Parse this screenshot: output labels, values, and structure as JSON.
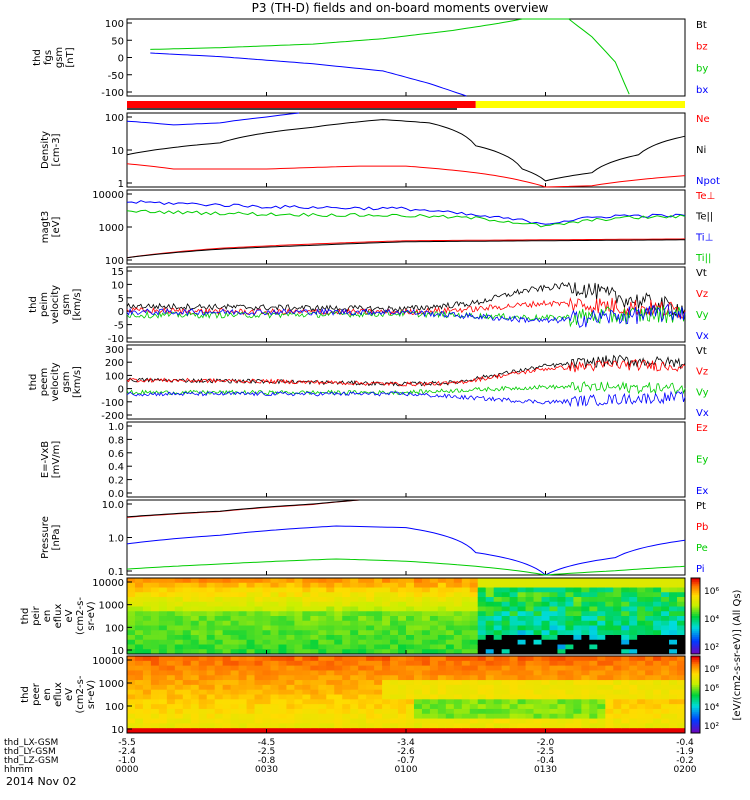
{
  "title": "P3 (TH-D) fields and on-board moments overview",
  "date_label": "2014 Nov 02",
  "colorbar": {
    "label": "[eV/(cm2-s-sr-eV)] (All Qs)",
    "ticks_upper": [
      "10⁶",
      "10⁴",
      "10²"
    ],
    "ticks_lower": [
      "10⁸",
      "10⁶",
      "10⁴",
      "10²"
    ]
  },
  "xaxis": {
    "rows": [
      {
        "label": "thd_LX-GSM",
        "values": [
          "-5.5",
          "-4.5",
          "-3.4",
          "-2.0",
          "-0.4"
        ]
      },
      {
        "label": "thd_LY-GSM",
        "values": [
          "-2.4",
          "-2.5",
          "-2.6",
          "-2.5",
          "-1.9"
        ]
      },
      {
        "label": "thd_LZ-GSM",
        "values": [
          "-1.0",
          "-0.8",
          "-0.7",
          "-0.4",
          "-0.2"
        ]
      },
      {
        "label": "hhmm",
        "values": [
          "0000",
          "0030",
          "0100",
          "0130",
          "0200"
        ]
      }
    ]
  },
  "panels": [
    {
      "key": "fgs",
      "ylabel": [
        "thd",
        "fgs",
        "gsm",
        "[nT]"
      ],
      "ticks": [
        "100",
        "50",
        "0",
        "-50",
        "-100"
      ],
      "legend": [
        {
          "t": "Bt",
          "c": "#000000"
        },
        {
          "t": "bz",
          "c": "#ff0000"
        },
        {
          "t": "by",
          "c": "#00cc00"
        },
        {
          "t": "bx",
          "c": "#0000ff"
        }
      ]
    },
    {
      "key": "density",
      "ylabel": [
        "Density",
        "[cm-3]"
      ],
      "ticks": [
        "100",
        "10",
        "1"
      ],
      "legend": [
        {
          "t": "Ne",
          "c": "#ff0000"
        },
        {
          "t": "Ni",
          "c": "#000000"
        },
        {
          "t": "Npot",
          "c": "#0000ff"
        }
      ]
    },
    {
      "key": "temp",
      "ylabel": [
        "magt3",
        "[eV]"
      ],
      "ticks": [
        "10000",
        "1000",
        "100"
      ],
      "legend": [
        {
          "t": "Te⊥",
          "c": "#ff0000"
        },
        {
          "t": "Te||",
          "c": "#000000"
        },
        {
          "t": "Ti⊥",
          "c": "#0000ff"
        },
        {
          "t": "Ti||",
          "c": "#00cc00"
        }
      ]
    },
    {
      "key": "peim_v",
      "ylabel": [
        "thd",
        "peim",
        "velocity",
        "gsm",
        "[km/s]"
      ],
      "ticks": [
        "15",
        "10",
        "5",
        "0",
        "-5",
        "-10"
      ],
      "legend": [
        {
          "t": "Vt",
          "c": "#000000"
        },
        {
          "t": "Vz",
          "c": "#ff0000"
        },
        {
          "t": "Vy",
          "c": "#00cc00"
        },
        {
          "t": "Vx",
          "c": "#0000ff"
        }
      ]
    },
    {
      "key": "peem_v",
      "ylabel": [
        "thd",
        "peem",
        "velocity",
        "gsm",
        "[km/s]"
      ],
      "ticks": [
        "300",
        "200",
        "100",
        "0",
        "-100",
        "-200"
      ],
      "legend": [
        {
          "t": "Vt",
          "c": "#000000"
        },
        {
          "t": "Vz",
          "c": "#ff0000"
        },
        {
          "t": "Vy",
          "c": "#00cc00"
        },
        {
          "t": "Vx",
          "c": "#0000ff"
        }
      ]
    },
    {
      "key": "efield",
      "ylabel": [
        "E=-VxB",
        "[mV/m]"
      ],
      "ticks": [
        "1.0",
        "0.8",
        "0.6",
        "0.4",
        "0.2",
        "0.0"
      ],
      "legend": [
        {
          "t": "Ez",
          "c": "#ff0000"
        },
        {
          "t": "Ey",
          "c": "#00cc00"
        },
        {
          "t": "Ex",
          "c": "#0000ff"
        }
      ]
    },
    {
      "key": "pressure",
      "ylabel": [
        "Pressure",
        "[nPa]"
      ],
      "ticks": [
        "10.0",
        "1.0",
        "0.1"
      ],
      "legend": [
        {
          "t": "Pt",
          "c": "#000000"
        },
        {
          "t": "Pb",
          "c": "#ff0000"
        },
        {
          "t": "Pe",
          "c": "#00cc00"
        },
        {
          "t": "Pi",
          "c": "#0000ff"
        }
      ]
    },
    {
      "key": "peir",
      "ylabel": [
        "thd",
        "peir",
        "en",
        "eflux",
        "eV",
        "(cm2-s-",
        "sr-eV)"
      ],
      "ticks": [
        "10000",
        "1000",
        "100",
        "10"
      ],
      "legend": []
    },
    {
      "key": "peer",
      "ylabel": [
        "thd",
        "peer",
        "en",
        "eflux",
        "eV",
        "(cm2-s-",
        "sr-eV)"
      ],
      "ticks": [
        "10000",
        "1000",
        "100",
        "10"
      ],
      "legend": []
    }
  ],
  "chart_data": [
    {
      "type": "line",
      "title": "P3 (TH-D) fields and on-board moments overview",
      "panel": "thd fgs gsm [nT]",
      "x_label": "hhmm",
      "xlim": [
        "0000",
        "0200"
      ],
      "ylim": [
        -115,
        100
      ],
      "series": [
        {
          "name": "by",
          "color": "#00cc00",
          "x": [
            "0005",
            "0020",
            "0040",
            "0055",
            "0110",
            "0120",
            "0125",
            "0135",
            "0140",
            "0145",
            "0148"
          ],
          "values": [
            15,
            20,
            30,
            45,
            68,
            88,
            100,
            100,
            50,
            -20,
            -110
          ]
        },
        {
          "name": "bx",
          "color": "#0000ff",
          "x": [
            "0005",
            "0020",
            "0040",
            "0055",
            "0105",
            "0113"
          ],
          "values": [
            5,
            -5,
            -25,
            -45,
            -80,
            -115
          ]
        }
      ]
    },
    {
      "type": "line",
      "panel": "Density [cm-3]",
      "scale": "log",
      "ylim": [
        0.5,
        150
      ],
      "series": [
        {
          "name": "Ne",
          "color": "#ff0000",
          "x": [
            "0000",
            "0010",
            "0030",
            "0050",
            "0100",
            "0115",
            "0125",
            "0130",
            "0140",
            "0200"
          ],
          "values": [
            3,
            2,
            2,
            2.5,
            2.5,
            1.5,
            0.8,
            0.5,
            0.55,
            1.2
          ]
        },
        {
          "name": "Ni",
          "color": "#000000",
          "x": [
            "0000",
            "0020",
            "0040",
            "0055",
            "0105",
            "0115",
            "0125",
            "0130",
            "0140",
            "0150",
            "0200"
          ],
          "values": [
            6,
            15,
            50,
            90,
            70,
            12,
            2,
            0.8,
            1.5,
            6,
            25
          ]
        },
        {
          "name": "Npot",
          "color": "#0000ff",
          "x": [
            "0000",
            "0010",
            "0020",
            "0030",
            "0037"
          ],
          "values": [
            80,
            60,
            70,
            110,
            150
          ]
        }
      ]
    },
    {
      "type": "line",
      "panel": "magt3 [eV]",
      "scale": "log",
      "ylim": [
        50,
        12000
      ],
      "series": [
        {
          "name": "Te⊥",
          "color": "#ff0000",
          "x": [
            "0000",
            "0020",
            "0040",
            "0100",
            "0130",
            "0200"
          ],
          "values": [
            80,
            160,
            220,
            280,
            300,
            320
          ]
        },
        {
          "name": "Te||",
          "color": "#000000",
          "x": [
            "0000",
            "0020",
            "0040",
            "0100",
            "0130",
            "0200"
          ],
          "values": [
            80,
            150,
            200,
            260,
            280,
            300
          ]
        },
        {
          "name": "Ti⊥",
          "color": "#0000ff",
          "x": [
            "0000",
            "0030",
            "0100",
            "0115",
            "0130",
            "0145",
            "0200"
          ],
          "values": [
            5000,
            3500,
            3000,
            1800,
            1000,
            1800,
            1800
          ]
        },
        {
          "name": "Ti||",
          "color": "#00cc00",
          "x": [
            "0000",
            "0030",
            "0100",
            "0115",
            "0130",
            "0145",
            "0200"
          ],
          "values": [
            2500,
            2000,
            1800,
            1500,
            800,
            1500,
            1700
          ]
        }
      ]
    },
    {
      "type": "line",
      "panel": "thd peim velocity gsm [km/s]",
      "ylim": [
        -10,
        15
      ],
      "series": [
        {
          "name": "Vt",
          "color": "#000000",
          "x": [
            "0000",
            "0030",
            "0100",
            "0115",
            "0125",
            "0135",
            "0145",
            "0200"
          ],
          "values": [
            2,
            1.5,
            1,
            3,
            7,
            9,
            5,
            1
          ]
        },
        {
          "name": "Vz",
          "color": "#ff0000",
          "x": [
            "0000",
            "0030",
            "0100",
            "0115",
            "0130",
            "0145",
            "0200"
          ],
          "values": [
            0.5,
            0,
            0,
            1,
            3,
            2,
            0.5
          ]
        },
        {
          "name": "Vy",
          "color": "#00cc00",
          "x": [
            "0000",
            "0030",
            "0100",
            "0130",
            "0200"
          ],
          "values": [
            -1,
            -1,
            -0.5,
            -2,
            -0.5
          ]
        },
        {
          "name": "Vx",
          "color": "#0000ff",
          "x": [
            "0000",
            "0030",
            "0100",
            "0130",
            "0200"
          ],
          "values": [
            0,
            0,
            0,
            -3,
            0
          ]
        }
      ]
    },
    {
      "type": "line",
      "panel": "thd peem velocity gsm [km/s]",
      "ylim": [
        -200,
        330
      ],
      "series": [
        {
          "name": "Vt",
          "color": "#000000",
          "x": [
            "0000",
            "0030",
            "0100",
            "0110",
            "0130",
            "0145",
            "0200"
          ],
          "values": [
            80,
            70,
            50,
            60,
            180,
            220,
            200
          ]
        },
        {
          "name": "Vz",
          "color": "#ff0000",
          "x": [
            "0000",
            "0030",
            "0100",
            "0110",
            "0130",
            "0145",
            "0200"
          ],
          "values": [
            80,
            70,
            50,
            55,
            160,
            190,
            180
          ]
        },
        {
          "name": "Vy",
          "color": "#00cc00",
          "x": [
            "0000",
            "0030",
            "0100",
            "0130",
            "0200"
          ],
          "values": [
            -10,
            -10,
            -10,
            30,
            20
          ]
        },
        {
          "name": "Vx",
          "color": "#0000ff",
          "x": [
            "0000",
            "0030",
            "0100",
            "0130",
            "0200"
          ],
          "values": [
            -20,
            -20,
            -20,
            -80,
            -40
          ]
        }
      ]
    },
    {
      "type": "line",
      "panel": "E=-VxB [mV/m]",
      "ylim": [
        0,
        1
      ],
      "series": []
    },
    {
      "type": "line",
      "panel": "Pressure [nPa]",
      "scale": "log",
      "ylim": [
        0.05,
        20
      ],
      "series": [
        {
          "name": "Pb",
          "color": "#ff0000",
          "x": [
            "0000",
            "0020",
            "0040",
            "0050"
          ],
          "values": [
            5,
            8,
            14,
            20
          ]
        },
        {
          "name": "Pt",
          "color": "#000000",
          "x": [
            "0000",
            "0020",
            "0040",
            "0050"
          ],
          "values": [
            5.2,
            8.2,
            14.5,
            20
          ]
        },
        {
          "name": "Pi",
          "color": "#0000ff",
          "x": [
            "0000",
            "0020",
            "0045",
            "0100",
            "0115",
            "0130",
            "0145",
            "0200"
          ],
          "values": [
            0.6,
            1.2,
            2.5,
            2.2,
            0.3,
            0.05,
            0.2,
            0.8
          ]
        },
        {
          "name": "Pe",
          "color": "#00cc00",
          "x": [
            "0000",
            "0020",
            "0045",
            "0100",
            "0115",
            "0130",
            "0145",
            "0200"
          ],
          "values": [
            0.08,
            0.12,
            0.18,
            0.15,
            0.1,
            0.05,
            0.07,
            0.1
          ]
        }
      ]
    },
    {
      "type": "heatmap",
      "panel": "thd peir en eflux eV (cm2-s-sr-eV)",
      "yscale": "log",
      "ylim": [
        10,
        20000
      ]
    },
    {
      "type": "heatmap",
      "panel": "thd peer en eflux eV (cm2-s-sr-eV)",
      "yscale": "log",
      "ylim": [
        10,
        20000
      ]
    }
  ]
}
